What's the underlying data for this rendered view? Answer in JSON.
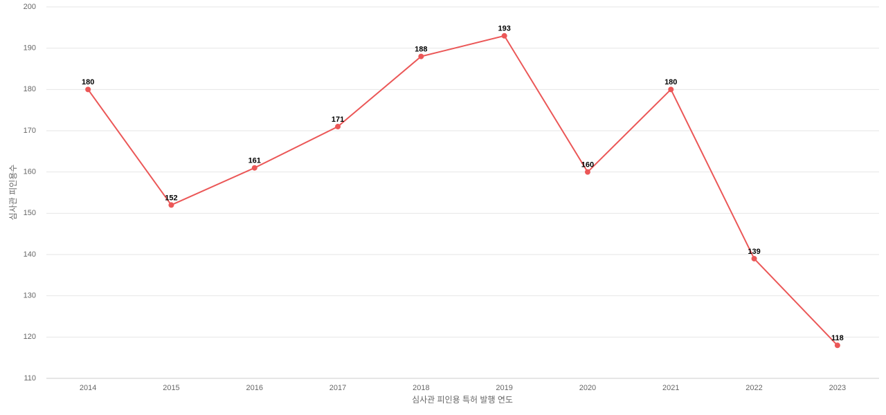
{
  "chart_data": {
    "type": "line",
    "x_label": "심사관 피인용 특허 발행 연도",
    "y_label": "심사관 피인용수",
    "categories": [
      "2014",
      "2015",
      "2016",
      "2017",
      "2018",
      "2019",
      "2020",
      "2021",
      "2022",
      "2023"
    ],
    "series": [
      {
        "name": "심사관 피인용수",
        "color": "#eb5757",
        "values": [
          180,
          152,
          161,
          171,
          188,
          193,
          160,
          180,
          139,
          118
        ]
      }
    ],
    "ylim": [
      110,
      200
    ],
    "yticks": [
      110,
      120,
      130,
      140,
      150,
      160,
      170,
      180,
      190,
      200
    ],
    "grid": true
  }
}
